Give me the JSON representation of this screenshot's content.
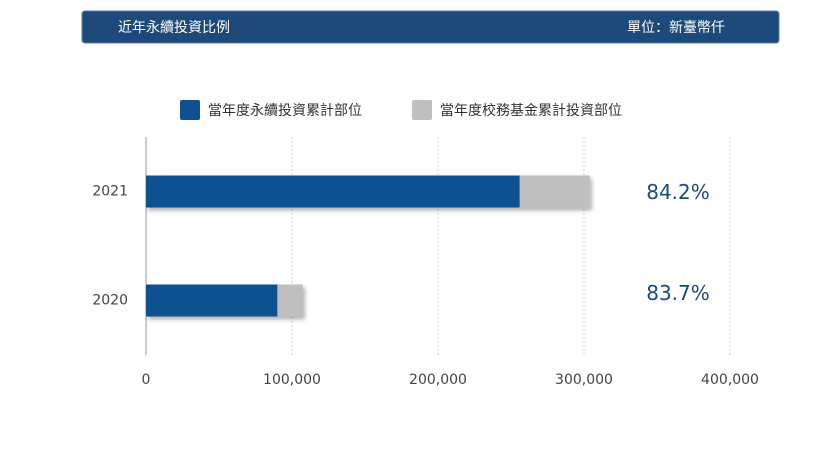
{
  "chart_data": {
    "type": "stacked_barh",
    "title": "近年永續投資比例",
    "unit": "單位：新臺幣仟",
    "categories": [
      "2021",
      "2020"
    ],
    "series": [
      {
        "name": "當年度永續投資累計部位",
        "color": "#0f5190",
        "values": [
          256000,
          90000
        ]
      },
      {
        "name": "當年度校務基金累計投資部位",
        "color": "#bfbfbf",
        "values": [
          48000,
          17500
        ]
      }
    ],
    "annotations": [
      "84.2%",
      "83.7%"
    ],
    "xlim": [
      0,
      400000
    ],
    "xticks": [
      0,
      {
        "value": 100000,
        "label": "100,000"
      },
      {
        "value": 200000,
        "label": "200,000"
      },
      {
        "value": 300000,
        "label": "300,000"
      },
      {
        "value": 400000,
        "label": "400,000"
      }
    ],
    "grid": true,
    "legend": "top"
  }
}
